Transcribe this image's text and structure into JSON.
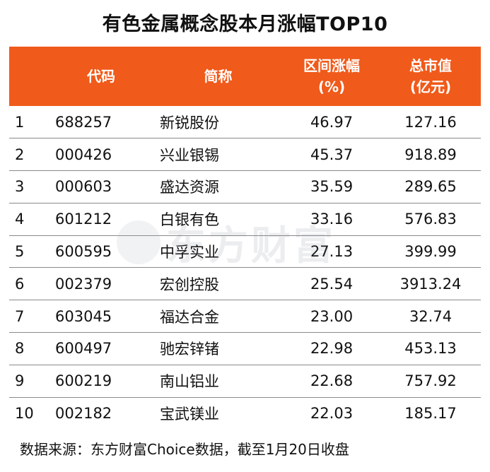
{
  "title": "有色金属概念股本月涨幅TOP10",
  "table": {
    "headers": {
      "rank": "",
      "code": "代码",
      "name": "简称",
      "change_line1": "区间涨幅",
      "change_line2": "(%)",
      "cap_line1": "总市值",
      "cap_line2": "(亿元)"
    },
    "rows": [
      {
        "rank": "1",
        "code": "688257",
        "name": "新锐股份",
        "change": "46.97",
        "cap": "127.16"
      },
      {
        "rank": "2",
        "code": "000426",
        "name": "兴业银锡",
        "change": "45.37",
        "cap": "918.89"
      },
      {
        "rank": "3",
        "code": "000603",
        "name": "盛达资源",
        "change": "35.59",
        "cap": "289.65"
      },
      {
        "rank": "4",
        "code": "601212",
        "name": "白银有色",
        "change": "33.16",
        "cap": "576.83"
      },
      {
        "rank": "5",
        "code": "600595",
        "name": "中孚实业",
        "change": "27.13",
        "cap": "399.99"
      },
      {
        "rank": "6",
        "code": "002379",
        "name": "宏创控股",
        "change": "25.54",
        "cap": "3913.24"
      },
      {
        "rank": "7",
        "code": "603045",
        "name": "福达合金",
        "change": "23.00",
        "cap": "32.74"
      },
      {
        "rank": "8",
        "code": "600497",
        "name": "驰宏锌锗",
        "change": "22.98",
        "cap": "453.13"
      },
      {
        "rank": "9",
        "code": "600219",
        "name": "南山铝业",
        "change": "22.68",
        "cap": "757.92"
      },
      {
        "rank": "10",
        "code": "002182",
        "name": "宝武镁业",
        "change": "22.03",
        "cap": "185.17"
      }
    ]
  },
  "watermark": {
    "text": "东方财富",
    "icon": "eastmoney-logo-icon"
  },
  "footer": "数据来源：东方财富Choice数据，截至1月20日收盘",
  "colors": {
    "header_bg": "#F05A1A",
    "header_text": "#FFFFFF"
  }
}
